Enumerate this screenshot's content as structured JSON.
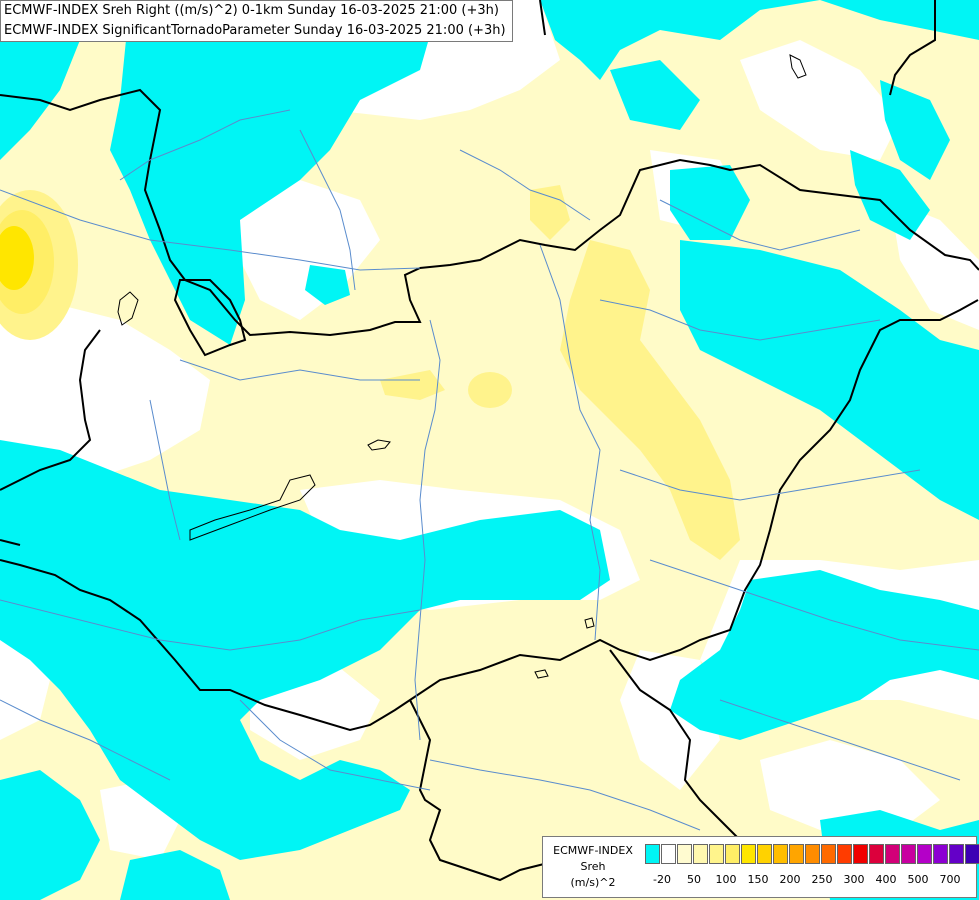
{
  "title": {
    "line1": "ECMWF-INDEX Sreh Right ((m/s)^2) 0-1km Sunday 16-03-2025 21:00 (+3h)",
    "line2": "ECMWF-INDEX SignificantTornadoParameter Sunday 16-03-2025 21:00 (+3h)"
  },
  "legend": {
    "model": "ECMWF-INDEX",
    "parameter": "Sreh",
    "unit": "(m/s)^2",
    "colors": [
      "#00f5f5",
      "#ffffff",
      "#fffbd0",
      "#fff8b0",
      "#fff48c",
      "#ffee66",
      "#ffe600",
      "#ffd200",
      "#ffbe00",
      "#ffa500",
      "#ff8c00",
      "#ff6a00",
      "#ff3c00",
      "#f00000",
      "#dc003c",
      "#d20078",
      "#c800a0",
      "#b400c8",
      "#8c00d2",
      "#6400c8",
      "#3c00b4",
      "#14008c"
    ],
    "ticks": [
      "-20",
      "50",
      "100",
      "150",
      "200",
      "250",
      "300",
      "400",
      "500",
      "700"
    ]
  },
  "field_colors": {
    "cyan": "#00f5f5",
    "white": "#ffffff",
    "pale_yellow": "#fffbc8",
    "light_yellow": "#fff38c",
    "yellow": "#ffee00"
  }
}
